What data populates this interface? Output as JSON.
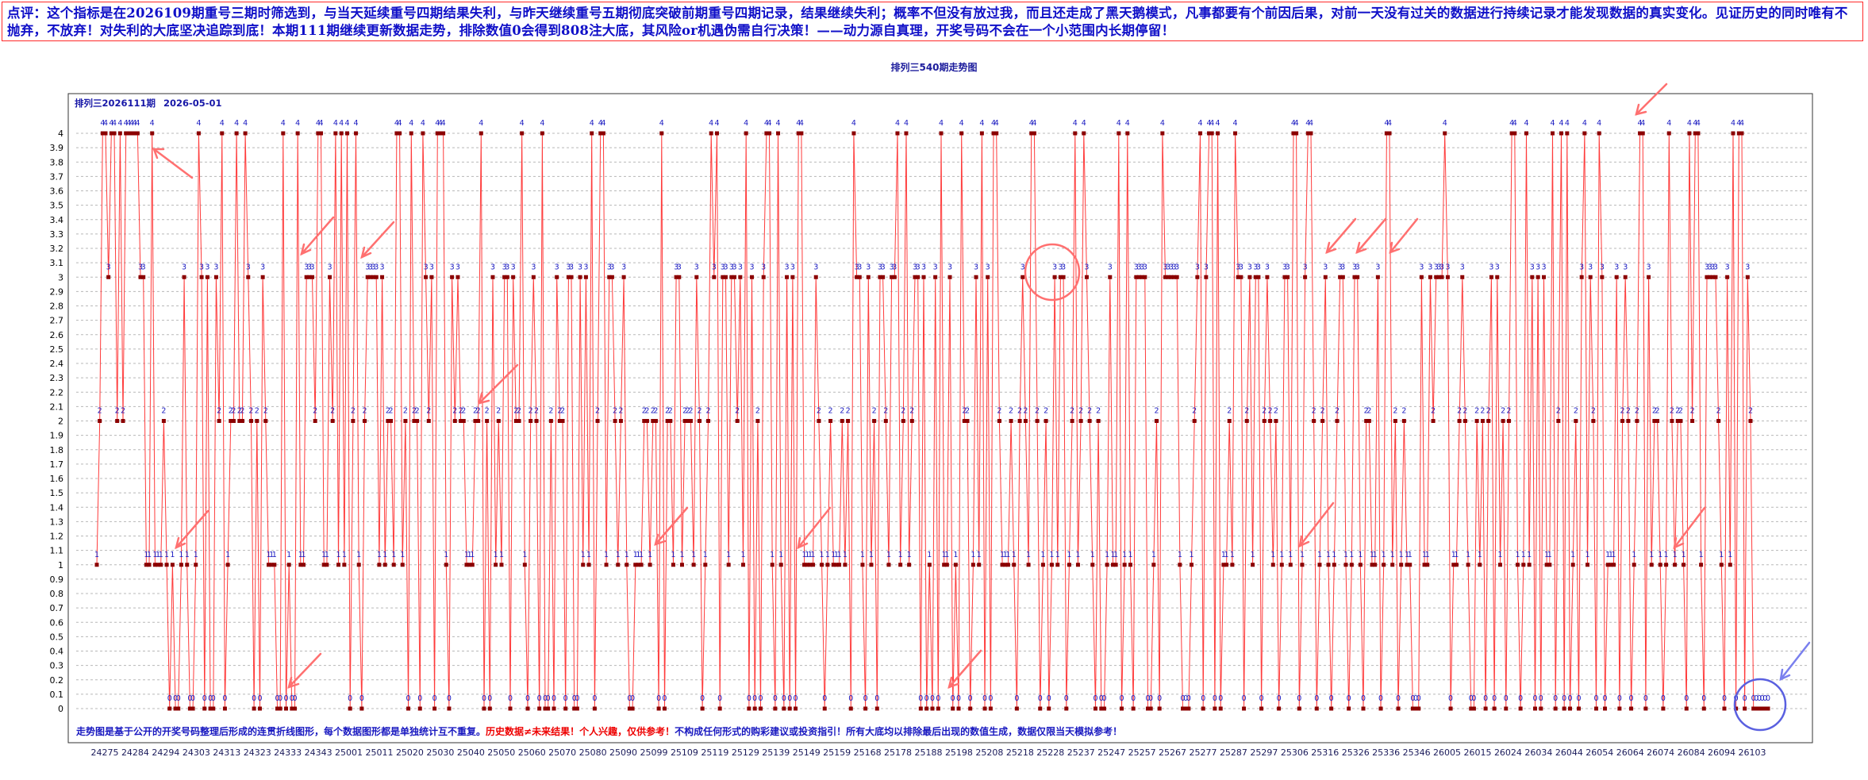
{
  "commentary": "点评：这个指标是在2026109期重号三期时筛选到，与当天延续重号四期结果失利，与昨天继续重号五期彻底突破前期重号四期记录，结果继续失利；概率不但没有放过我，而且还走成了黑天鹅模式，凡事都要有个前因后果，对前一天没有过关的数据进行持续记录才能发现数据的真实变化。见证历史的同时唯有不抛弃，不放弃！对失利的大底坚决追踪到底！本期111期继续更新数据走势，排除数值0会得到808注大底，其风险or机遇伪需自行决策！——动力源自真理，开奖号码不会在一个小范围内长期停留！",
  "chart_title": "排列三540期走势图",
  "plot_header": {
    "issue": "排列三2026111期",
    "date": "2026-05-01"
  },
  "footer": {
    "part1": "走势图是基于公开的开奖号码整理后形成的连贯折线图形，每个数据图形都是单独统计互不重复。",
    "part2": "历史数据≠未来结果！个人兴趣，仅供参考！",
    "part3": "不构成任何形式的购彩建议或投资指引！所有大底均以排除最后出现的数值生成，数据仅限当天模拟参考！"
  },
  "colors": {
    "line": "#ff3b3b",
    "marker": "#8b0000",
    "label": "#1818c0",
    "grid": "#b8b8b8",
    "annotation": "#ff7070",
    "circle_blue": "#5a60e0",
    "footer_red": "#ee0000",
    "footer_blue": "#1818c0"
  },
  "chart_data": {
    "type": "line",
    "ylim": [
      0,
      4
    ],
    "yticks": [
      0,
      0.1,
      0.2,
      0.3,
      0.4,
      0.5,
      0.6,
      0.7,
      0.8,
      0.9,
      1,
      1.1,
      1.2,
      1.3,
      1.4,
      1.5,
      1.6,
      1.7,
      1.8,
      1.9,
      2,
      2.1,
      2.2,
      2.3,
      2.4,
      2.5,
      2.6,
      2.7,
      2.8,
      2.9,
      3,
      3.1,
      3.2,
      3.3,
      3.4,
      3.5,
      3.6,
      3.7,
      3.8,
      3.9,
      4
    ],
    "grid": true,
    "x_tick_labels": [
      "24275",
      "24284",
      "24294",
      "24303",
      "24313",
      "24323",
      "24333",
      "24343",
      "25001",
      "25011",
      "25020",
      "25030",
      "25040",
      "25050",
      "25060",
      "25070",
      "25080",
      "25090",
      "25099",
      "25109",
      "25119",
      "25129",
      "25139",
      "25149",
      "25159",
      "25168",
      "25178",
      "25188",
      "25198",
      "25208",
      "25218",
      "25228",
      "25237",
      "25247",
      "25257",
      "25267",
      "25277",
      "25287",
      "25297",
      "25306",
      "25316",
      "25326",
      "25336",
      "25346",
      "26005",
      "26015",
      "26024",
      "26034",
      "26044",
      "26054",
      "26064",
      "26074",
      "26084",
      "26094",
      "26103"
    ],
    "values": [
      1,
      2,
      4,
      4,
      3,
      4,
      4,
      2,
      4,
      2,
      4,
      4,
      4,
      4,
      4,
      3,
      3,
      1,
      1,
      4,
      1,
      1,
      1,
      2,
      1,
      0,
      1,
      0,
      0,
      1,
      3,
      1,
      0,
      0,
      1,
      4,
      3,
      0,
      3,
      0,
      0,
      3,
      2,
      4,
      0,
      1,
      2,
      2,
      4,
      2,
      2,
      4,
      3,
      2,
      0,
      2,
      0,
      3,
      2,
      1,
      1,
      1,
      0,
      0,
      4,
      0,
      1,
      0,
      0,
      4,
      1,
      1,
      3,
      3,
      3,
      2,
      4,
      4,
      1,
      1,
      3,
      2,
      4,
      1,
      4,
      1,
      4,
      0,
      2,
      4,
      1,
      0,
      2,
      3,
      3,
      3,
      3,
      1,
      3,
      1,
      2,
      2,
      1,
      4,
      4,
      1,
      2,
      0,
      4,
      2,
      2,
      0,
      4,
      3,
      2,
      3,
      0,
      4,
      4,
      4,
      1,
      0,
      3,
      2,
      3,
      2,
      2,
      1,
      1,
      1,
      2,
      2,
      4,
      0,
      2,
      0,
      3,
      1,
      2,
      1,
      3,
      3,
      0,
      3,
      2,
      2,
      4,
      1,
      0,
      2,
      3,
      2,
      0,
      4,
      0,
      0,
      2,
      0,
      3,
      2,
      2,
      0,
      3,
      3,
      0,
      0,
      3,
      1,
      3,
      1,
      4,
      0,
      2,
      4,
      4,
      1,
      3,
      3,
      2,
      1,
      2,
      3,
      1,
      0,
      0,
      1,
      1,
      1,
      2,
      2,
      1,
      2,
      2,
      0,
      4,
      0,
      2,
      2,
      1,
      3,
      3,
      1,
      2,
      2,
      2,
      1,
      3,
      2,
      0,
      1,
      2,
      4,
      3,
      4,
      0,
      3,
      3,
      1,
      3,
      3,
      2,
      3,
      1,
      4,
      0,
      3,
      0,
      2,
      0,
      3,
      4,
      4,
      1,
      0,
      4,
      1,
      0,
      3,
      0,
      3,
      0,
      4,
      4,
      1,
      1,
      1,
      1,
      3,
      2,
      1,
      0,
      1,
      2,
      1,
      1,
      1,
      2,
      1,
      2,
      0,
      4,
      3,
      3,
      1,
      0,
      3,
      1,
      2,
      0,
      3,
      3,
      2,
      1,
      3,
      3,
      4,
      1,
      2,
      4,
      1,
      2,
      3,
      3,
      0,
      3,
      0,
      1,
      0,
      3,
      0,
      4,
      1,
      1,
      3,
      0,
      1,
      0,
      4,
      2,
      2,
      0,
      1,
      3,
      1,
      4,
      0,
      3,
      0,
      4,
      4,
      2,
      1,
      1,
      1,
      2,
      1,
      0,
      2,
      3,
      2,
      1,
      4,
      4,
      2,
      0,
      1,
      2,
      0,
      1,
      3,
      1,
      3,
      3,
      0,
      1,
      2,
      4,
      1,
      2,
      4,
      3,
      2,
      1,
      0,
      2,
      0,
      0,
      1,
      3,
      1,
      1,
      4,
      0,
      1,
      4,
      1,
      0,
      3,
      3,
      3,
      3,
      0,
      0,
      1,
      2,
      0,
      4,
      3,
      3,
      3,
      3,
      3,
      1,
      0,
      0,
      0,
      1,
      2,
      3,
      4,
      0,
      3,
      4,
      4,
      0,
      4,
      0,
      1,
      1,
      2,
      1,
      4,
      3,
      3,
      0,
      2,
      3,
      1,
      3,
      3,
      0,
      2,
      3,
      2,
      1,
      2,
      0,
      1,
      3,
      3,
      1,
      4,
      4,
      0,
      1,
      3,
      4,
      4,
      2,
      0,
      1,
      2,
      3,
      1,
      0,
      1,
      2,
      3,
      3,
      1,
      0,
      1,
      3,
      3,
      1,
      0,
      2,
      2,
      1,
      1,
      3,
      0,
      1,
      4,
      4,
      1,
      2,
      0,
      1,
      2,
      1,
      1,
      0,
      0,
      0,
      3,
      1,
      1,
      3,
      2,
      3,
      3,
      3,
      4,
      3,
      0,
      1,
      1,
      2,
      3,
      2,
      1,
      0,
      0,
      2,
      1,
      2,
      0,
      2,
      3,
      0,
      3,
      1,
      2,
      0,
      2,
      4,
      4,
      1,
      0,
      1,
      4,
      1,
      3,
      0,
      3,
      0,
      3,
      1,
      1,
      4,
      0,
      2,
      4,
      0,
      4,
      0,
      1,
      2,
      0,
      3,
      4,
      1,
      3,
      2,
      0,
      4,
      3,
      0,
      1,
      1,
      1,
      3,
      0,
      2,
      3,
      2,
      0,
      1,
      2,
      4,
      4,
      0,
      3,
      1,
      2,
      2,
      1,
      0,
      1,
      4,
      2,
      1,
      2,
      2,
      1,
      0,
      4,
      2,
      4,
      4,
      1,
      0,
      3,
      3,
      3,
      3,
      2,
      1,
      0,
      3,
      1,
      4,
      0,
      4,
      4,
      0,
      3,
      2,
      0,
      0,
      0,
      0,
      0,
      0
    ]
  }
}
